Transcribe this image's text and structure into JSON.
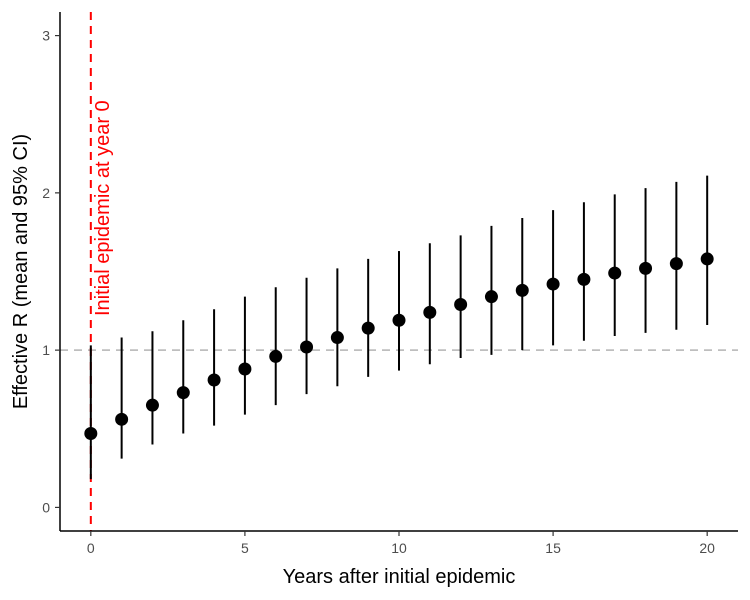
{
  "chart_data": {
    "type": "scatter",
    "title": "",
    "xlabel": "Years after initial epidemic",
    "ylabel": "Effective R (mean and 95% CI)",
    "xlim": [
      -1,
      21
    ],
    "ylim": [
      -0.15,
      3.15
    ],
    "x_ticks": [
      0,
      5,
      10,
      15,
      20
    ],
    "y_ticks": [
      0,
      1,
      2,
      3
    ],
    "grid": false,
    "legend": "none",
    "series": [
      {
        "x": [
          0,
          1,
          2,
          3,
          4,
          5,
          6,
          7,
          8,
          9,
          10,
          11,
          12,
          13,
          14,
          15,
          16,
          17,
          18,
          19,
          20
        ],
        "mean": [
          0.47,
          0.56,
          0.65,
          0.73,
          0.81,
          0.88,
          0.96,
          1.02,
          1.08,
          1.14,
          1.19,
          1.24,
          1.29,
          1.34,
          1.38,
          1.42,
          1.45,
          1.49,
          1.52,
          1.55,
          1.58
        ],
        "lower": [
          0.18,
          0.31,
          0.4,
          0.47,
          0.52,
          0.59,
          0.65,
          0.72,
          0.77,
          0.83,
          0.87,
          0.91,
          0.95,
          0.97,
          1.0,
          1.03,
          1.06,
          1.09,
          1.11,
          1.13,
          1.16
        ],
        "upper": [
          1.03,
          1.08,
          1.12,
          1.19,
          1.26,
          1.34,
          1.4,
          1.46,
          1.52,
          1.58,
          1.63,
          1.68,
          1.73,
          1.79,
          1.84,
          1.89,
          1.94,
          1.99,
          2.03,
          2.07,
          2.11
        ]
      }
    ],
    "reference_lines": [
      {
        "axis": "y",
        "value": 1,
        "style": "dashed",
        "color": "#bebebe"
      },
      {
        "axis": "x",
        "value": 0,
        "style": "dashed",
        "color": "#ff0000",
        "label": "Initial epidemic at year 0"
      }
    ],
    "colors": {
      "points": "#000000",
      "annotation": "#ff0000",
      "reference": "#bebebe"
    }
  }
}
